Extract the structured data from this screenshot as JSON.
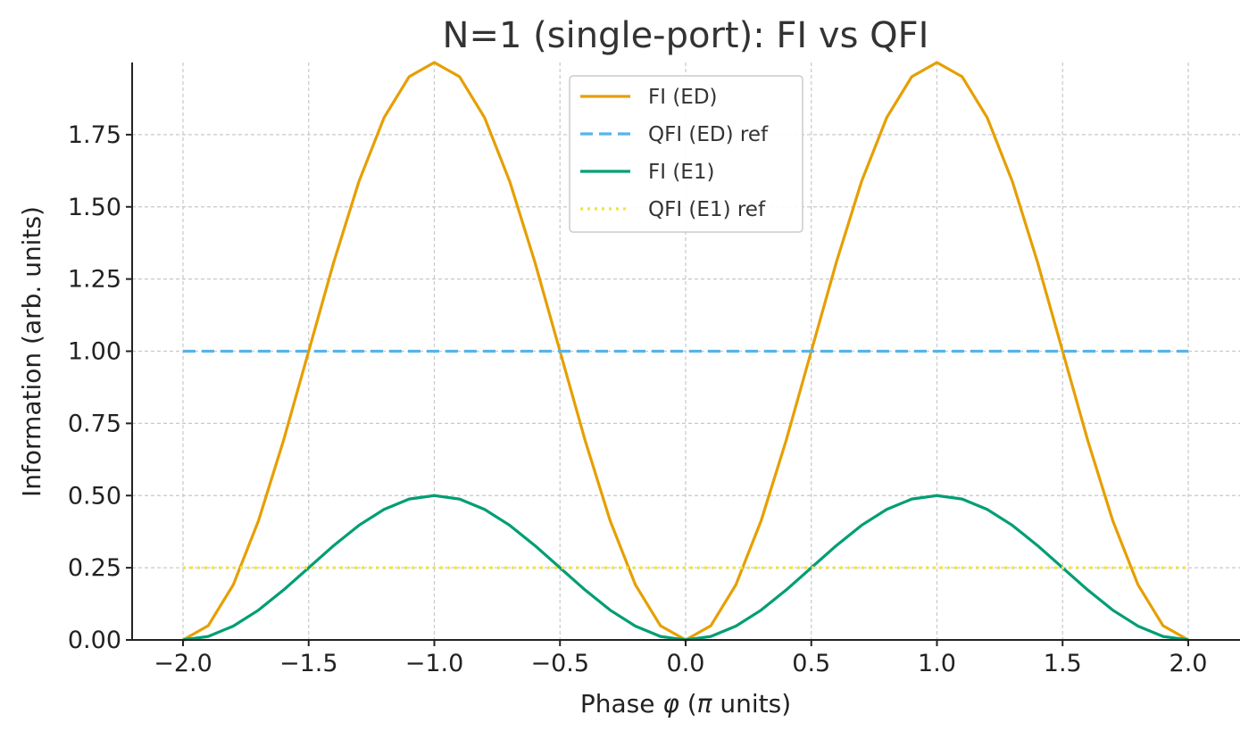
{
  "chart_data": {
    "type": "line",
    "title": "N=1 (single-port): FI vs QFI",
    "xlabel_prefix": "Phase ",
    "xlabel_phi": "φ",
    "xlabel_mid": " (",
    "xlabel_pi": "π",
    "xlabel_suffix": " units)",
    "ylabel": "Information (arb. units)",
    "xlim": [
      -2.2,
      2.2
    ],
    "ylim": [
      0,
      2.0
    ],
    "xticks": [
      -2.0,
      -1.5,
      -1.0,
      -0.5,
      0.0,
      0.5,
      1.0,
      1.5,
      2.0
    ],
    "xtick_labels": [
      "−2.0",
      "−1.5",
      "−1.0",
      "−0.5",
      "0.0",
      "0.5",
      "1.0",
      "1.5",
      "2.0"
    ],
    "yticks": [
      0.0,
      0.25,
      0.5,
      0.75,
      1.0,
      1.25,
      1.5,
      1.75
    ],
    "ytick_labels": [
      "0.00",
      "0.25",
      "0.50",
      "0.75",
      "1.00",
      "1.25",
      "1.50",
      "1.75"
    ],
    "grid": true,
    "legend_position": "top-center",
    "x": [
      -2.0,
      -1.9,
      -1.8,
      -1.7,
      -1.6,
      -1.5,
      -1.4,
      -1.3,
      -1.2,
      -1.1,
      -1.0,
      -0.9,
      -0.8,
      -0.7,
      -0.6,
      -0.5,
      -0.4,
      -0.3,
      -0.2,
      -0.1,
      0.0,
      0.1,
      0.2,
      0.3,
      0.4,
      0.5,
      0.6,
      0.7,
      0.8,
      0.9,
      1.0,
      1.1,
      1.2,
      1.3,
      1.4,
      1.5,
      1.6,
      1.7,
      1.8,
      1.9,
      2.0
    ],
    "series": [
      {
        "name": "FI (ED)",
        "color": "#E69F00",
        "style": "solid",
        "values": [
          0.0,
          0.049,
          0.191,
          0.412,
          0.691,
          1.0,
          1.309,
          1.588,
          1.809,
          1.951,
          2.0,
          1.951,
          1.809,
          1.588,
          1.309,
          1.0,
          0.691,
          0.412,
          0.191,
          0.049,
          0.0,
          0.049,
          0.191,
          0.412,
          0.691,
          1.0,
          1.309,
          1.588,
          1.809,
          1.951,
          2.0,
          1.951,
          1.809,
          1.588,
          1.309,
          1.0,
          0.691,
          0.412,
          0.191,
          0.049,
          0.0
        ]
      },
      {
        "name": "QFI (ED) ref",
        "color": "#56B4E9",
        "style": "dashed",
        "values": [
          1.0,
          1.0,
          1.0,
          1.0,
          1.0,
          1.0,
          1.0,
          1.0,
          1.0,
          1.0,
          1.0,
          1.0,
          1.0,
          1.0,
          1.0,
          1.0,
          1.0,
          1.0,
          1.0,
          1.0,
          1.0,
          1.0,
          1.0,
          1.0,
          1.0,
          1.0,
          1.0,
          1.0,
          1.0,
          1.0,
          1.0,
          1.0,
          1.0,
          1.0,
          1.0,
          1.0,
          1.0,
          1.0,
          1.0,
          1.0,
          1.0
        ]
      },
      {
        "name": "FI (E1)",
        "color": "#009E73",
        "style": "solid",
        "values": [
          0.0,
          0.012,
          0.048,
          0.103,
          0.173,
          0.25,
          0.327,
          0.397,
          0.452,
          0.488,
          0.5,
          0.488,
          0.452,
          0.397,
          0.327,
          0.25,
          0.173,
          0.103,
          0.048,
          0.012,
          0.0,
          0.012,
          0.048,
          0.103,
          0.173,
          0.25,
          0.327,
          0.397,
          0.452,
          0.488,
          0.5,
          0.488,
          0.452,
          0.397,
          0.327,
          0.25,
          0.173,
          0.103,
          0.048,
          0.012,
          0.0
        ]
      },
      {
        "name": "QFI (E1) ref",
        "color": "#F0E442",
        "style": "dotted",
        "values": [
          0.25,
          0.25,
          0.25,
          0.25,
          0.25,
          0.25,
          0.25,
          0.25,
          0.25,
          0.25,
          0.25,
          0.25,
          0.25,
          0.25,
          0.25,
          0.25,
          0.25,
          0.25,
          0.25,
          0.25,
          0.25,
          0.25,
          0.25,
          0.25,
          0.25,
          0.25,
          0.25,
          0.25,
          0.25,
          0.25,
          0.25,
          0.25,
          0.25,
          0.25,
          0.25,
          0.25,
          0.25,
          0.25,
          0.25,
          0.25,
          0.25
        ]
      }
    ]
  }
}
